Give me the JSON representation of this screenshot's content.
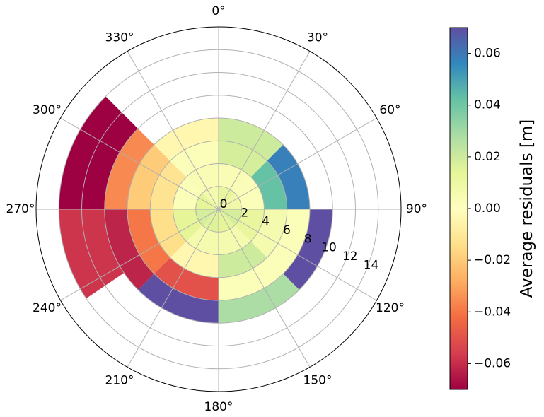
{
  "chart_data": {
    "type": "polar-bar",
    "theta_direction": "clockwise",
    "theta_zero": "N",
    "theta_ticks": [
      "0°",
      "30°",
      "60°",
      "90°",
      "120°",
      "150°",
      "180°",
      "210°",
      "240°",
      "270°",
      "300°",
      "330°"
    ],
    "r_ticks": [
      "0",
      "2",
      "4",
      "6",
      "8",
      "10",
      "12",
      "14"
    ],
    "r_max": 16,
    "grid": true,
    "colorbar": {
      "label": "Average residuals [m]",
      "vmin": -0.07,
      "vmax": 0.07,
      "colormap": "Spectral",
      "ticks": [
        "−0.06",
        "−0.04",
        "−0.02",
        "0.00",
        "0.02",
        "0.04",
        "0.06"
      ],
      "tick_values": [
        -0.06,
        -0.04,
        -0.02,
        0.0,
        0.02,
        0.04,
        0.06
      ]
    },
    "bins": [
      {
        "theta": [
          0,
          45
        ],
        "r": [
          0,
          2
        ],
        "value": 0.012
      },
      {
        "theta": [
          0,
          45
        ],
        "r": [
          2,
          4
        ],
        "value": 0.004
      },
      {
        "theta": [
          0,
          45
        ],
        "r": [
          4,
          6
        ],
        "value": 0.018
      },
      {
        "theta": [
          0,
          45
        ],
        "r": [
          6,
          8
        ],
        "value": 0.02
      },
      {
        "theta": [
          45,
          90
        ],
        "r": [
          0,
          2
        ],
        "value": 0.008
      },
      {
        "theta": [
          45,
          90
        ],
        "r": [
          2,
          4
        ],
        "value": 0.002
      },
      {
        "theta": [
          45,
          90
        ],
        "r": [
          4,
          6
        ],
        "value": 0.042
      },
      {
        "theta": [
          45,
          90
        ],
        "r": [
          6,
          8
        ],
        "value": 0.058
      },
      {
        "theta": [
          90,
          135
        ],
        "r": [
          0,
          2
        ],
        "value": 0.018
      },
      {
        "theta": [
          90,
          135
        ],
        "r": [
          2,
          4
        ],
        "value": 0.012
      },
      {
        "theta": [
          90,
          135
        ],
        "r": [
          4,
          6
        ],
        "value": 0.006
      },
      {
        "theta": [
          90,
          135
        ],
        "r": [
          6,
          8
        ],
        "value": 0.002
      },
      {
        "theta": [
          90,
          135
        ],
        "r": [
          8,
          10
        ],
        "value": 0.07
      },
      {
        "theta": [
          135,
          180
        ],
        "r": [
          0,
          2
        ],
        "value": 0.014
      },
      {
        "theta": [
          135,
          180
        ],
        "r": [
          2,
          4
        ],
        "value": 0.006
      },
      {
        "theta": [
          135,
          180
        ],
        "r": [
          4,
          6
        ],
        "value": 0.02
      },
      {
        "theta": [
          135,
          180
        ],
        "r": [
          6,
          8
        ],
        "value": 0.002
      },
      {
        "theta": [
          135,
          180
        ],
        "r": [
          8,
          10
        ],
        "value": 0.028
      },
      {
        "theta": [
          180,
          225
        ],
        "r": [
          0,
          2
        ],
        "value": 0.016
      },
      {
        "theta": [
          180,
          225
        ],
        "r": [
          2,
          4
        ],
        "value": 0.006
      },
      {
        "theta": [
          180,
          225
        ],
        "r": [
          4,
          6
        ],
        "value": -0.004
      },
      {
        "theta": [
          180,
          225
        ],
        "r": [
          6,
          8
        ],
        "value": -0.05
      },
      {
        "theta": [
          180,
          225
        ],
        "r": [
          8,
          10
        ],
        "value": 0.07
      },
      {
        "theta": [
          225,
          270
        ],
        "r": [
          0,
          2
        ],
        "value": 0.018
      },
      {
        "theta": [
          225,
          270
        ],
        "r": [
          2,
          4
        ],
        "value": 0.014
      },
      {
        "theta": [
          225,
          270
        ],
        "r": [
          4,
          6
        ],
        "value": -0.014
      },
      {
        "theta": [
          225,
          270
        ],
        "r": [
          6,
          8
        ],
        "value": -0.04
      },
      {
        "theta": [
          225,
          270
        ],
        "r": [
          8,
          10
        ],
        "value": -0.062
      },
      {
        "theta": [
          270,
          315
        ],
        "r": [
          0,
          2
        ],
        "value": 0.014
      },
      {
        "theta": [
          270,
          315
        ],
        "r": [
          2,
          4
        ],
        "value": 0.002
      },
      {
        "theta": [
          270,
          315
        ],
        "r": [
          4,
          6
        ],
        "value": -0.012
      },
      {
        "theta": [
          270,
          315
        ],
        "r": [
          6,
          8
        ],
        "value": -0.02
      },
      {
        "theta": [
          270,
          315
        ],
        "r": [
          8,
          10
        ],
        "value": -0.036
      },
      {
        "theta": [
          270,
          315
        ],
        "r": [
          10,
          14
        ],
        "value": -0.07
      },
      {
        "theta": [
          315,
          360
        ],
        "r": [
          0,
          2
        ],
        "value": 0.006
      },
      {
        "theta": [
          315,
          360
        ],
        "r": [
          2,
          4
        ],
        "value": 0.004
      },
      {
        "theta": [
          315,
          360
        ],
        "r": [
          4,
          6
        ],
        "value": 0.002
      },
      {
        "theta": [
          315,
          360
        ],
        "r": [
          6,
          8
        ],
        "value": -0.004
      },
      {
        "theta": [
          236,
          270
        ],
        "r": [
          10,
          14
        ],
        "value": -0.058
      }
    ]
  }
}
